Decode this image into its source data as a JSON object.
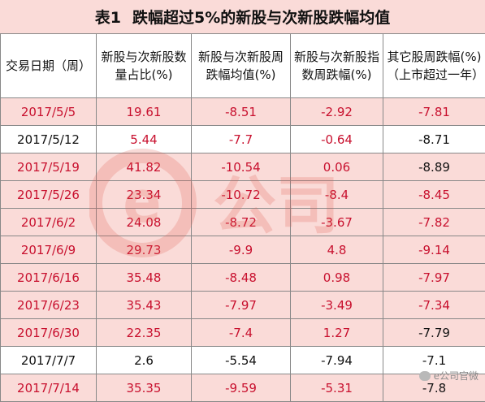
{
  "table": {
    "title_num": "表1",
    "title": "跌幅超过5%的新股与次新股跌幅均值",
    "headers": [
      "交易日期（周）",
      "新股与次新股数量占比(%)",
      "新股与次新股周跌幅均值(%)",
      "新股与次新股指数周跌幅(%)",
      "其它股周跌幅(%)（上市超过一年）"
    ],
    "rows": [
      [
        "2017/5/5",
        "19.61",
        "-8.51",
        "-2.92",
        "-7.81"
      ],
      [
        "2017/5/12",
        "5.44",
        "-7.7",
        "-0.64",
        "-8.71"
      ],
      [
        "2017/5/19",
        "41.82",
        "-10.54",
        "0.06",
        "-8.89"
      ],
      [
        "2017/5/26",
        "23.34",
        "-10.72",
        "-8.4",
        "-8.45"
      ],
      [
        "2017/6/2",
        "24.08",
        "-8.72",
        "-3.67",
        "-7.82"
      ],
      [
        "2017/6/9",
        "29.73",
        "-9.9",
        "4.8",
        "-9.14"
      ],
      [
        "2017/6/16",
        "35.48",
        "-8.48",
        "0.98",
        "-7.97"
      ],
      [
        "2017/6/23",
        "35.43",
        "-7.97",
        "-3.49",
        "-7.34"
      ],
      [
        "2017/6/30",
        "22.35",
        "-7.4",
        "1.27",
        "-7.79"
      ],
      [
        "2017/7/7",
        "2.6",
        "-5.54",
        "-7.94",
        "-7.1"
      ],
      [
        "2017/7/14",
        "35.35",
        "-9.59",
        "-5.31",
        "-7.8"
      ]
    ]
  },
  "watermark": {
    "glyph": "e",
    "text": "公司"
  },
  "source": "e公司官微",
  "colors": {
    "shade": "#fadbd8",
    "red": "#c8102e",
    "text": "#111111"
  }
}
